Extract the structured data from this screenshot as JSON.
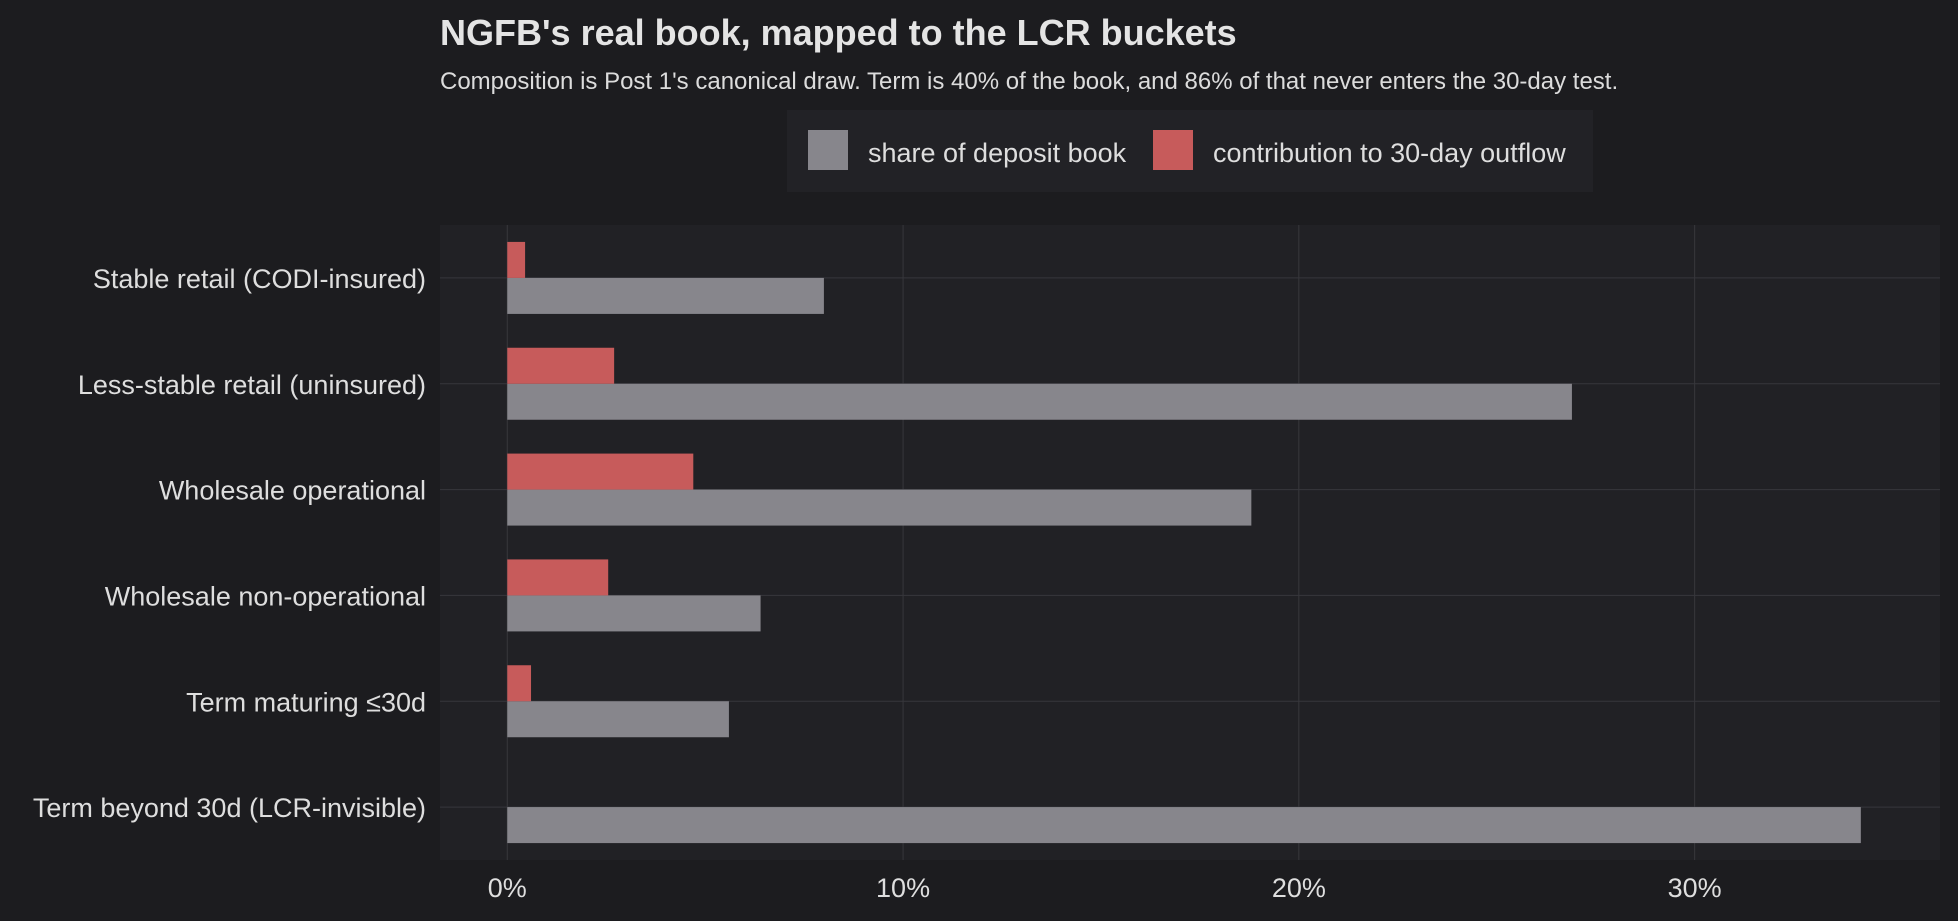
{
  "chart_data": {
    "type": "bar",
    "orientation": "horizontal",
    "title": "NGFB's real book, mapped to the LCR buckets",
    "subtitle": "Composition is Post 1's canonical draw. Term is 40% of the book, and 86% of that never enters the 30-day test.",
    "xlabel": "",
    "ylabel": "",
    "xlim": [
      -1.7,
      36.2
    ],
    "x_ticks": [
      0,
      10,
      20,
      30
    ],
    "x_tick_labels": [
      "0%",
      "10%",
      "20%",
      "30%"
    ],
    "grid": true,
    "legend_position": "top",
    "categories": [
      "Stable retail (CODI-insured)",
      "Less-stable retail (uninsured)",
      "Wholesale operational",
      "Wholesale non-operational",
      "Term maturing ≤30d",
      "Term beyond 30d (LCR-invisible)"
    ],
    "series": [
      {
        "name": "share of deposit book",
        "color": "#87868c",
        "values": [
          8.0,
          26.9,
          18.8,
          6.4,
          5.6,
          34.2
        ]
      },
      {
        "name": "contribution to 30-day outflow",
        "color": "#c75b5b",
        "values": [
          0.45,
          2.7,
          4.7,
          2.55,
          0.6,
          0.0
        ]
      }
    ]
  }
}
